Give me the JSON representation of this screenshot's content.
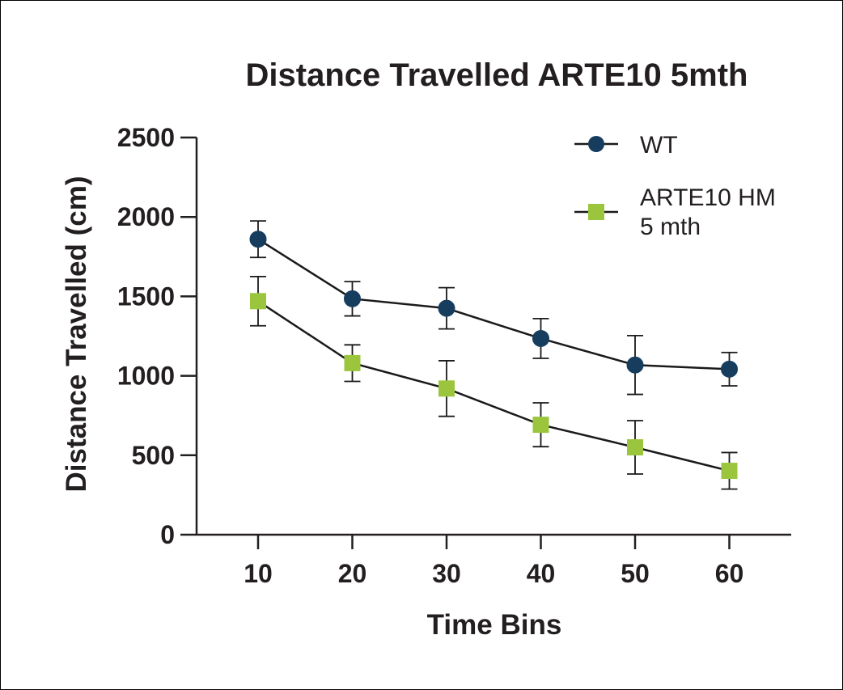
{
  "chart_data": {
    "type": "line",
    "title": "Distance Travelled ARTE10 5mth",
    "xlabel": "Time Bins",
    "ylabel": "Distance Travelled (cm)",
    "x": [
      10,
      20,
      30,
      40,
      50,
      60
    ],
    "x_ticks": [
      "10",
      "20",
      "30",
      "40",
      "50",
      "60"
    ],
    "y_ticks": [
      "0",
      "500",
      "1000",
      "1500",
      "2000",
      "2500"
    ],
    "ylim": [
      0,
      2500
    ],
    "grid": false,
    "legend_position": "top-right",
    "series": [
      {
        "name": "WT",
        "marker": "circle",
        "color": "#163c5e",
        "values": [
          1860,
          1485,
          1425,
          1235,
          1068,
          1042
        ],
        "errors": [
          115,
          108,
          130,
          125,
          185,
          105
        ]
      },
      {
        "name": "ARTE10 HM\n5 mth",
        "name_lines": [
          "ARTE10 HM",
          "5 mth"
        ],
        "marker": "square",
        "color": "#9bc53d",
        "values": [
          1470,
          1080,
          920,
          692,
          550,
          402
        ],
        "errors": [
          155,
          115,
          175,
          138,
          168,
          115
        ]
      }
    ]
  }
}
